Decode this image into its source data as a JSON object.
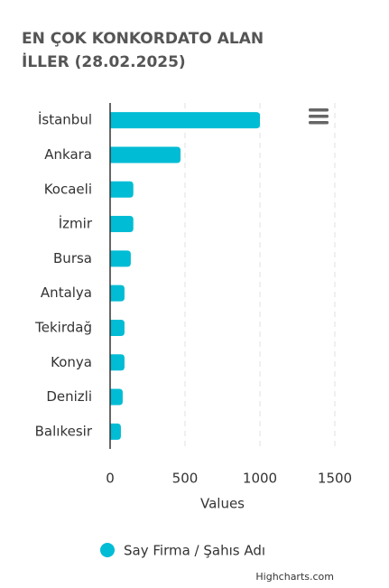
{
  "chart_data": {
    "type": "bar",
    "title": "EN ÇOK KONKORDATO ALAN İLLER (28.02.2025)",
    "categories": [
      "İstanbul",
      "Ankara",
      "Kocaeli",
      "İzmir",
      "Bursa",
      "Antalya",
      "Tekirdağ",
      "Konya",
      "Denizli",
      "Balıkesir"
    ],
    "series": [
      {
        "name": "Say Firma / Şahıs Adı",
        "color": "#00bcd4",
        "values": [
          1000,
          470,
          155,
          155,
          138,
          96,
          96,
          96,
          84,
          72
        ]
      }
    ],
    "x_label": "Values",
    "xlim": [
      0,
      1500
    ],
    "xticks": [
      0,
      500,
      1000,
      1500
    ],
    "grid": true,
    "credits": "Highcharts.com"
  }
}
